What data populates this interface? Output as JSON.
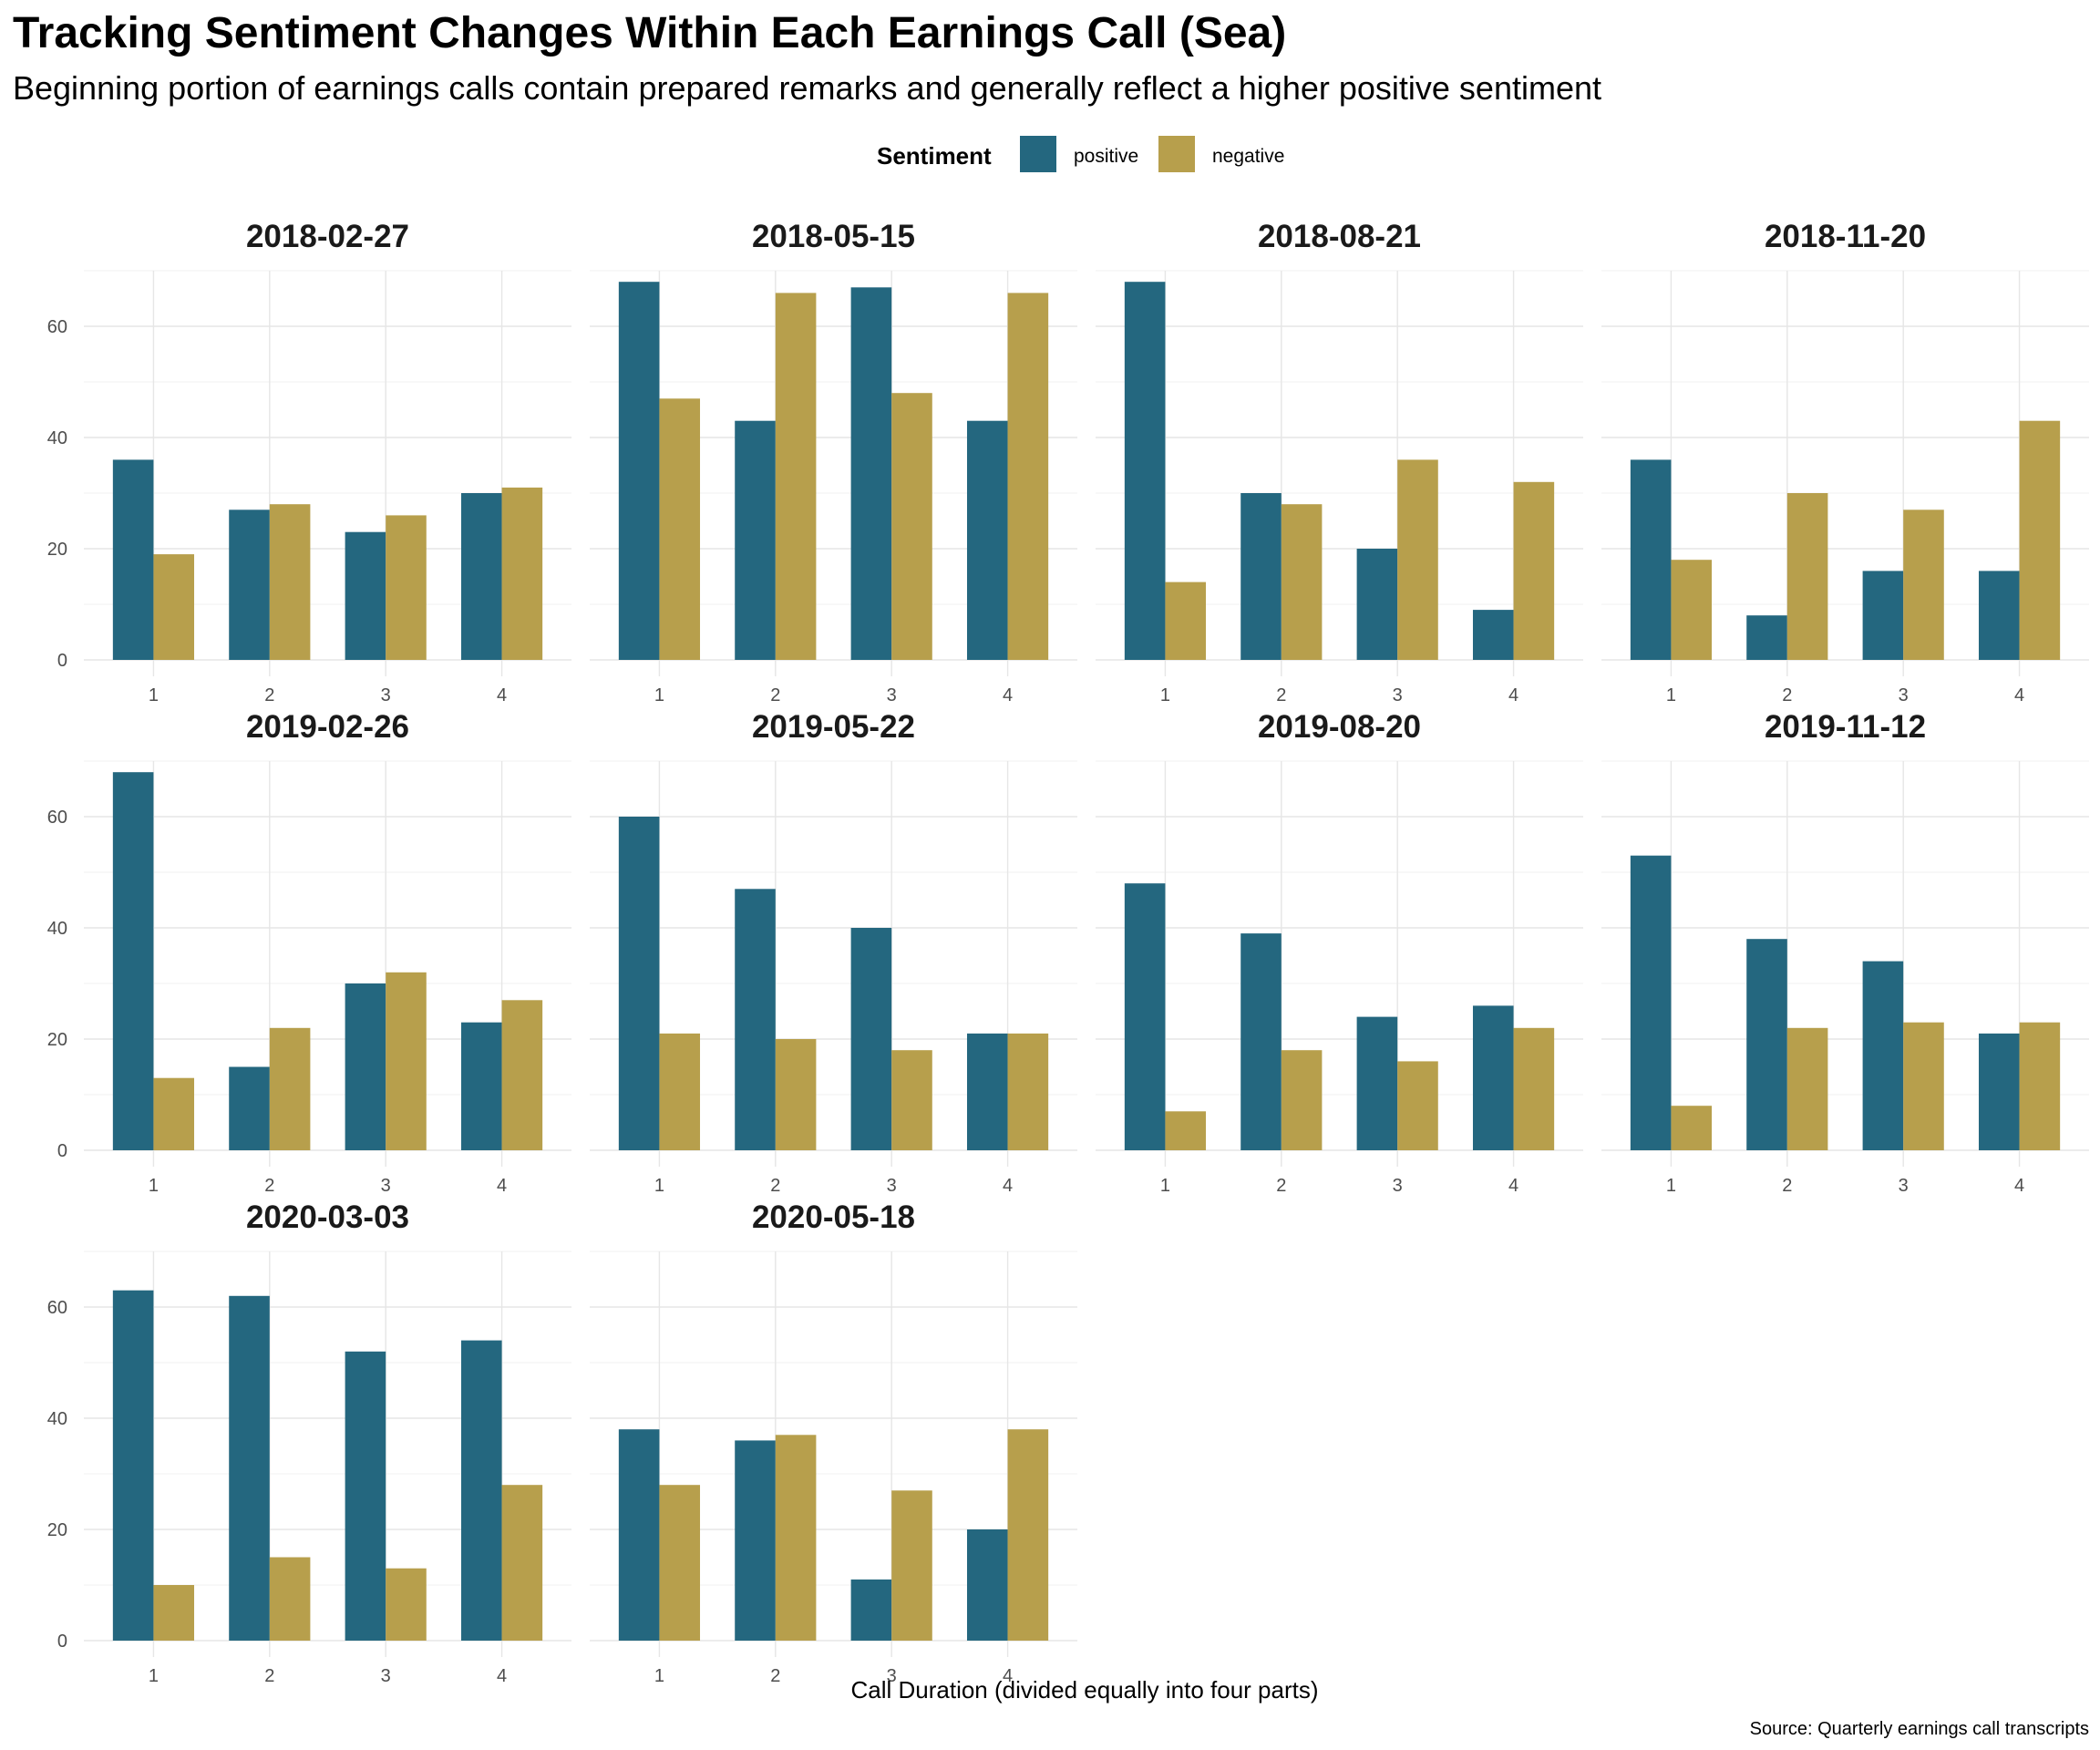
{
  "chart_data": {
    "type": "bar",
    "title": "Tracking Sentiment Changes Within Each Earnings Call (Sea)",
    "subtitle": "Beginning portion of earnings calls contain prepared remarks and generally reflect a higher positive sentiment",
    "xlabel": "Call Duration (divided equally into four parts)",
    "ylabel": "",
    "caption": "Source: Quarterly earnings call transcripts",
    "legend": {
      "title": "Sentiment",
      "position": "top",
      "entries": [
        {
          "name": "positive",
          "color": "#24677F"
        },
        {
          "name": "negative",
          "color": "#B79F4C"
        }
      ]
    },
    "categories": [
      "1",
      "2",
      "3",
      "4"
    ],
    "ylim": [
      0,
      70
    ],
    "yticks": [
      "0",
      "20",
      "40",
      "60"
    ],
    "grid": true,
    "facets": [
      {
        "label": "2018-02-27",
        "series": [
          {
            "name": "positive",
            "values": [
              36,
              27,
              23,
              30
            ]
          },
          {
            "name": "negative",
            "values": [
              19,
              28,
              26,
              31
            ]
          }
        ]
      },
      {
        "label": "2018-05-15",
        "series": [
          {
            "name": "positive",
            "values": [
              68,
              43,
              67,
              43
            ]
          },
          {
            "name": "negative",
            "values": [
              47,
              66,
              48,
              66
            ]
          }
        ]
      },
      {
        "label": "2018-08-21",
        "series": [
          {
            "name": "positive",
            "values": [
              68,
              30,
              20,
              9
            ]
          },
          {
            "name": "negative",
            "values": [
              14,
              28,
              36,
              32
            ]
          }
        ]
      },
      {
        "label": "2018-11-20",
        "series": [
          {
            "name": "positive",
            "values": [
              36,
              8,
              16,
              16
            ]
          },
          {
            "name": "negative",
            "values": [
              18,
              30,
              27,
              43
            ]
          }
        ]
      },
      {
        "label": "2019-02-26",
        "series": [
          {
            "name": "positive",
            "values": [
              68,
              15,
              30,
              23
            ]
          },
          {
            "name": "negative",
            "values": [
              13,
              22,
              32,
              27
            ]
          }
        ]
      },
      {
        "label": "2019-05-22",
        "series": [
          {
            "name": "positive",
            "values": [
              60,
              47,
              40,
              21
            ]
          },
          {
            "name": "negative",
            "values": [
              21,
              20,
              18,
              21
            ]
          }
        ]
      },
      {
        "label": "2019-08-20",
        "series": [
          {
            "name": "positive",
            "values": [
              48,
              39,
              24,
              26
            ]
          },
          {
            "name": "negative",
            "values": [
              7,
              18,
              16,
              22
            ]
          }
        ]
      },
      {
        "label": "2019-11-12",
        "series": [
          {
            "name": "positive",
            "values": [
              53,
              38,
              34,
              21
            ]
          },
          {
            "name": "negative",
            "values": [
              8,
              22,
              23,
              23
            ]
          }
        ]
      },
      {
        "label": "2020-03-03",
        "series": [
          {
            "name": "positive",
            "values": [
              63,
              62,
              52,
              54
            ]
          },
          {
            "name": "negative",
            "values": [
              10,
              15,
              13,
              28
            ]
          }
        ]
      },
      {
        "label": "2020-05-18",
        "series": [
          {
            "name": "positive",
            "values": [
              38,
              36,
              11,
              20
            ]
          },
          {
            "name": "negative",
            "values": [
              28,
              37,
              27,
              38
            ]
          }
        ]
      }
    ]
  }
}
